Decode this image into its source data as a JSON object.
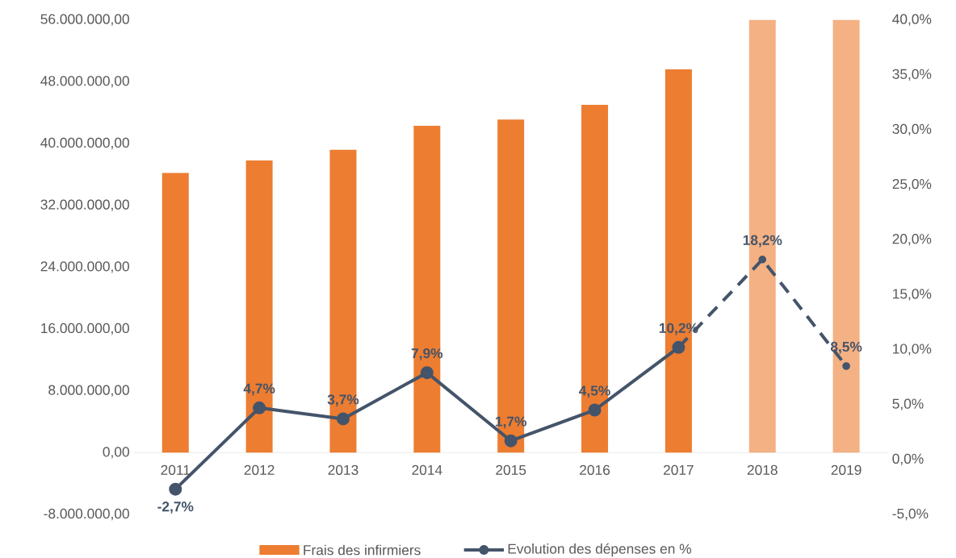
{
  "chart_data": {
    "type": "bar",
    "categories": [
      "2011",
      "2012",
      "2013",
      "2014",
      "2015",
      "2016",
      "2017",
      "2018",
      "2019"
    ],
    "series": [
      {
        "name": "Frais des infirmiers",
        "color": "#ed7d31",
        "colors": [
          "#ed7d31",
          "#ed7d31",
          "#ed7d31",
          "#ed7d31",
          "#ed7d31",
          "#ed7d31",
          "#ed7d31",
          "#f4b183",
          "#f4b183"
        ],
        "values": [
          36200000,
          37800000,
          39200000,
          42300000,
          43100000,
          45000000,
          49600000,
          56000000,
          56000000
        ]
      },
      {
        "name": "Evolution des dépenses en %",
        "type": "line",
        "axis": "y2",
        "color": "#44546a",
        "line_style": "solid",
        "marker": "circle",
        "values": [
          -2.7,
          4.7,
          3.7,
          7.9,
          1.7,
          4.5,
          10.2,
          null,
          null
        ],
        "value_labels": [
          "-2,7%",
          "4,7%",
          "3,7%",
          "7,9%",
          "1,7%",
          "4,5%",
          "10,2%",
          null,
          null
        ]
      },
      {
        "type": "line",
        "axis": "y2",
        "color": "#44546a",
        "line_style": "dashed",
        "marker": "circle",
        "values": [
          null,
          null,
          null,
          null,
          null,
          null,
          10.2,
          18.2,
          8.5
        ],
        "value_labels": [
          null,
          null,
          null,
          null,
          null,
          null,
          null,
          "18,2%",
          "8,5%"
        ]
      }
    ],
    "ylim": [
      -8000000,
      56000000
    ],
    "yticks": [
      {
        "value": -8000000,
        "label": "-8.000.000,00"
      },
      {
        "value": 0,
        "label": "0,00"
      },
      {
        "value": 8000000,
        "label": "8.000.000,00"
      },
      {
        "value": 16000000,
        "label": "16.000.000,00"
      },
      {
        "value": 24000000,
        "label": "24.000.000,00"
      },
      {
        "value": 32000000,
        "label": "32.000.000,00"
      },
      {
        "value": 40000000,
        "label": "40.000.000,00"
      },
      {
        "value": 48000000,
        "label": "48.000.000,00"
      },
      {
        "value": 56000000,
        "label": "56.000.000,00"
      }
    ],
    "y2lim": [
      -5,
      40
    ],
    "y2ticks": [
      {
        "value": -5,
        "label": "-5,0%"
      },
      {
        "value": 0,
        "label": "0,0%"
      },
      {
        "value": 5,
        "label": "5,0%"
      },
      {
        "value": 10,
        "label": "10,0%"
      },
      {
        "value": 15,
        "label": "15,0%"
      },
      {
        "value": 20,
        "label": "20,0%"
      },
      {
        "value": 25,
        "label": "25,0%"
      },
      {
        "value": 30,
        "label": "30,0%"
      },
      {
        "value": 35,
        "label": "35,0%"
      },
      {
        "value": 40,
        "label": "40,0%"
      }
    ],
    "legend": "bottom"
  }
}
